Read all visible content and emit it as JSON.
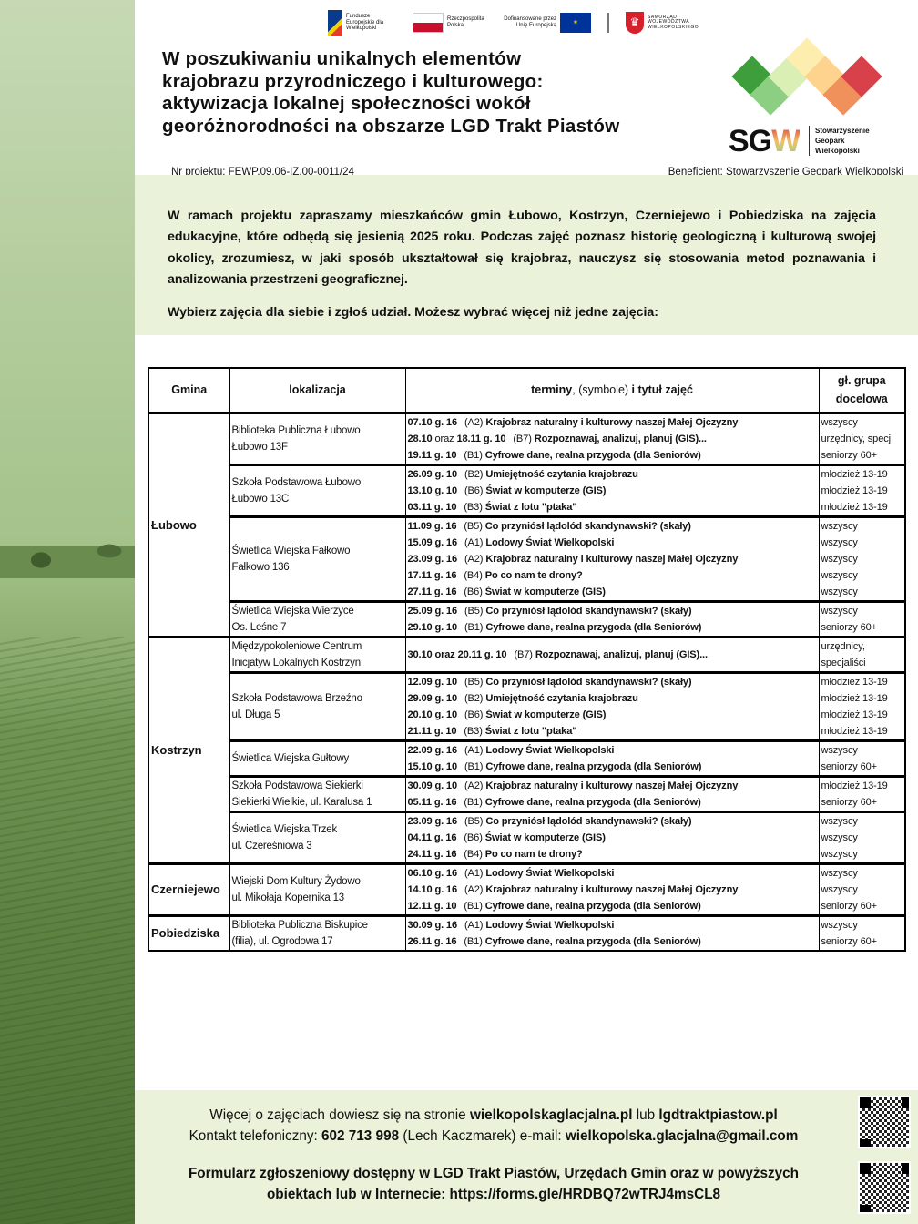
{
  "header": {
    "logos": {
      "fe": "Fundusze Europejskie dla Wielkopolski",
      "pl": "Rzeczpospolita Polska",
      "eu": "Dofinansowane przez Unię Europejską",
      "region": "SAMORZĄD WOJEWÓDZTWA WIELKOPOLSKIEGO"
    },
    "title_lines": [
      "W poszukiwaniu unikalnych elementów",
      "krajobrazu przyrodniczego i kulturowego:",
      "aktywizacja lokalnej społeczności wokół",
      "georóżnorodności na obszarze LGD Trakt Piastów"
    ],
    "project_nr": "Nr projektu:  FEWP.09.06-IZ.00-0011/24",
    "beneficiary": "Beneficjent: Stowarzyszenie Geopark Wielkopolski",
    "sgw": {
      "mark": "SG",
      "mark_w": "W",
      "name_lines": [
        "Stowarzyszenie",
        "Geopark",
        "Wielkopolski"
      ],
      "colors": [
        "#3f9e3c",
        "#8ccf82",
        "#d9efb4",
        "#fdeeb0",
        "#fdd38e",
        "#f0905a",
        "#d9414a"
      ]
    }
  },
  "intro": {
    "text": "W ramach projektu zapraszamy mieszkańców gmin Łubowo, Kostrzyn, Czerniejewo i Pobiedziska na zajęcia edukacyjne, które odbędą się jesienią 2025 roku. Podczas zajęć poznasz historię geologiczną i kulturową swojej okolicy, zrozumiesz, w jaki sposób ukształtował się krajobraz, nauczysz się stosowania metod poznawania i analizowania przestrzeni geograficznej.",
    "cta": "Wybierz zajęcia dla siebie i zgłoś udział. Możesz wybrać więcej niż jedne zajęcia:"
  },
  "table": {
    "headers": {
      "gmina": "Gmina",
      "lokalizacja": "lokalizacja",
      "terminy_a": "terminy",
      "terminy_b": ", ",
      "terminy_c": "(symbole)",
      "terminy_d": " i tytuł zajęć",
      "grupa": "gł. grupa docelowa"
    },
    "gminy": [
      {
        "name": "Łubowo",
        "locations": [
          {
            "lines": [
              "Biblioteka Publiczna Łubowo",
              "Łubowo 13F"
            ],
            "sessions": [
              {
                "date": "07.10 g. 16",
                "code": "(A2)",
                "title": "Krajobraz naturalny i kulturowy naszej Małej Ojczyzny",
                "group": "wszyscy"
              },
              {
                "date": "28.10",
                "join": "oraz",
                "date2": "18.11 g. 10",
                "code": "(B7)",
                "title": "Rozpoznawaj, analizuj, planuj (GIS)...",
                "group": "urzędnicy, specj"
              },
              {
                "date": "19.11 g. 10",
                "code": "(B1)",
                "title": "Cyfrowe dane, realna przygoda (dla Seniorów)",
                "group": "seniorzy 60+"
              }
            ]
          },
          {
            "lines": [
              "Szkoła Podstawowa Łubowo",
              "Łubowo 13C"
            ],
            "sessions": [
              {
                "date": "26.09 g. 10",
                "code": "(B2)",
                "title": "Umiejętność czytania krajobrazu",
                "group": "młodzież 13-19"
              },
              {
                "date": "13.10 g. 10",
                "code": "(B6)",
                "title": "Świat w komputerze (GIS)",
                "group": "młodzież 13-19"
              },
              {
                "date": "03.11 g. 10",
                "code": "(B3)",
                "title": "Świat z lotu \"ptaka\"",
                "group": "młodzież 13-19"
              }
            ]
          },
          {
            "lines": [
              "Świetlica Wiejska Fałkowo",
              "Fałkowo 136"
            ],
            "sessions": [
              {
                "date": "11.09 g. 16",
                "code": "(B5)",
                "title": "Co przyniósł lądolód skandynawski? (skały)",
                "group": "wszyscy"
              },
              {
                "date": "15.09 g. 16",
                "code": "(A1)",
                "title": "Lodowy Świat Wielkopolski",
                "group": "wszyscy"
              },
              {
                "date": "23.09 g. 16",
                "code": "(A2)",
                "title": "Krajobraz naturalny i kulturowy naszej Małej Ojczyzny",
                "group": "wszyscy"
              },
              {
                "date": "17.11 g. 16",
                "code": "(B4)",
                "title": "Po co nam te drony?",
                "group": "wszyscy"
              },
              {
                "date": "27.11 g. 16",
                "code": "(B6)",
                "title": "Świat w komputerze (GIS)",
                "group": "wszyscy"
              }
            ]
          },
          {
            "lines": [
              "Świetlica Wiejska Wierzyce",
              "Os. Leśne 7"
            ],
            "sessions": [
              {
                "date": "25.09 g. 16",
                "code": "(B5)",
                "title": "Co przyniósł lądolód skandynawski? (skały)",
                "group": "wszyscy"
              },
              {
                "date": "29.10 g. 10",
                "code": "(B1)",
                "title": "Cyfrowe dane, realna przygoda (dla Seniorów)",
                "group": "seniorzy 60+"
              }
            ]
          }
        ]
      },
      {
        "name": "Kostrzyn",
        "locations": [
          {
            "lines": [
              "Międzypokoleniowe Centrum",
              "Inicjatyw Lokalnych Kostrzyn"
            ],
            "sessions": [
              {
                "date": "30.10 oraz 20.11 g. 10",
                "code": "(B7)",
                "title": "Rozpoznawaj, analizuj, planuj (GIS)...",
                "group": "urzędnicy, specjaliści",
                "wrap": true
              }
            ]
          },
          {
            "lines": [
              "Szkoła Podstawowa Brzeźno",
              "ul. Długa 5"
            ],
            "sessions": [
              {
                "date": "12.09 g. 10",
                "code": "(B5)",
                "title": "Co przyniósł lądolód skandynawski? (skały)",
                "group": "młodzież 13-19"
              },
              {
                "date": "29.09 g. 10",
                "code": "(B2)",
                "title": "Umiejętność czytania krajobrazu",
                "group": "młodzież 13-19"
              },
              {
                "date": "20.10 g. 10",
                "code": "(B6)",
                "title": "Świat w komputerze (GIS)",
                "group": "młodzież 13-19"
              },
              {
                "date": "21.11 g. 10",
                "code": "(B3)",
                "title": "Świat z lotu \"ptaka\"",
                "group": "młodzież 13-19"
              }
            ]
          },
          {
            "lines": [
              "Świetlica Wiejska Gułtowy"
            ],
            "sessions": [
              {
                "date": "22.09 g. 16",
                "code": "(A1)",
                "title": "Lodowy Świat Wielkopolski",
                "group": "wszyscy"
              },
              {
                "date": "15.10 g. 10",
                "code": "(B1)",
                "title": "Cyfrowe dane, realna przygoda (dla Seniorów)",
                "group": "seniorzy 60+"
              }
            ]
          },
          {
            "lines": [
              "Szkoła Podstawowa Siekierki",
              "Siekierki Wielkie, ul. Karalusa 1"
            ],
            "sessions": [
              {
                "date": "30.09 g. 10",
                "code": "(A2)",
                "title": "Krajobraz naturalny i kulturowy naszej Małej Ojczyzny",
                "group": "młodzież 13-19"
              },
              {
                "date": "05.11 g. 16",
                "code": "(B1)",
                "title": "Cyfrowe dane, realna przygoda (dla Seniorów)",
                "group": "seniorzy 60+"
              }
            ]
          },
          {
            "lines": [
              "Świetlica Wiejska Trzek",
              "ul. Czereśniowa 3"
            ],
            "sessions": [
              {
                "date": "23.09 g. 16",
                "code": "(B5)",
                "title": "Co przyniósł lądolód skandynawski? (skały)",
                "group": "wszyscy"
              },
              {
                "date": "04.11 g. 16",
                "code": "(B6)",
                "title": "Świat w komputerze (GIS)",
                "group": "wszyscy"
              },
              {
                "date": "24.11 g. 16",
                "code": "(B4)",
                "title": "Po co nam te drony?",
                "group": "wszyscy"
              }
            ]
          }
        ]
      },
      {
        "name": "Czerniejewo",
        "locations": [
          {
            "lines": [
              "Wiejski Dom Kultury Żydowo",
              "ul. Mikołaja Kopernika 13"
            ],
            "sessions": [
              {
                "date": "06.10 g. 16",
                "code": "(A1)",
                "title": "Lodowy Świat Wielkopolski",
                "group": "wszyscy"
              },
              {
                "date": "14.10 g. 16",
                "code": "(A2)",
                "title": "Krajobraz naturalny i kulturowy naszej Małej Ojczyzny",
                "group": "wszyscy"
              },
              {
                "date": "12.11 g. 10",
                "code": "(B1)",
                "title": "Cyfrowe dane, realna przygoda (dla Seniorów)",
                "group": "seniorzy 60+"
              }
            ]
          }
        ]
      },
      {
        "name": "Pobiedziska",
        "locations": [
          {
            "lines": [
              "Biblioteka Publiczna Biskupice",
              "(filia), ul. Ogrodowa 17"
            ],
            "sessions": [
              {
                "date": "30.09 g. 16",
                "code": "(A1)",
                "title": "Lodowy Świat Wielkopolski",
                "group": "wszyscy"
              },
              {
                "date": "26.11 g. 16",
                "code": "(B1)",
                "title": "Cyfrowe dane, realna przygoda (dla Seniorów)",
                "group": "seniorzy 60+"
              }
            ]
          }
        ]
      }
    ]
  },
  "footer": {
    "l1a": "Więcej o zajęciach dowiesz się na stronie ",
    "l1b": "wielkopolskaglacjalna.pl",
    "l1c": " lub ",
    "l1d": "lgdtraktpiastow.pl",
    "l2a": "Kontakt telefoniczny: ",
    "l2b": "602 713 998",
    "l2c": " (Lech Kaczmarek) e-mail: ",
    "l2d": "wielkopolska.glacjalna@gmail.com",
    "form_l1": "Formularz zgłoszeniowy dostępny w LGD Trakt Piastów, Urzędach Gmin oraz w powyższych",
    "form_l2": "obiektach lub w Internecie:  https://forms.gle/HRDBQ72wTRJ4msCL8"
  }
}
